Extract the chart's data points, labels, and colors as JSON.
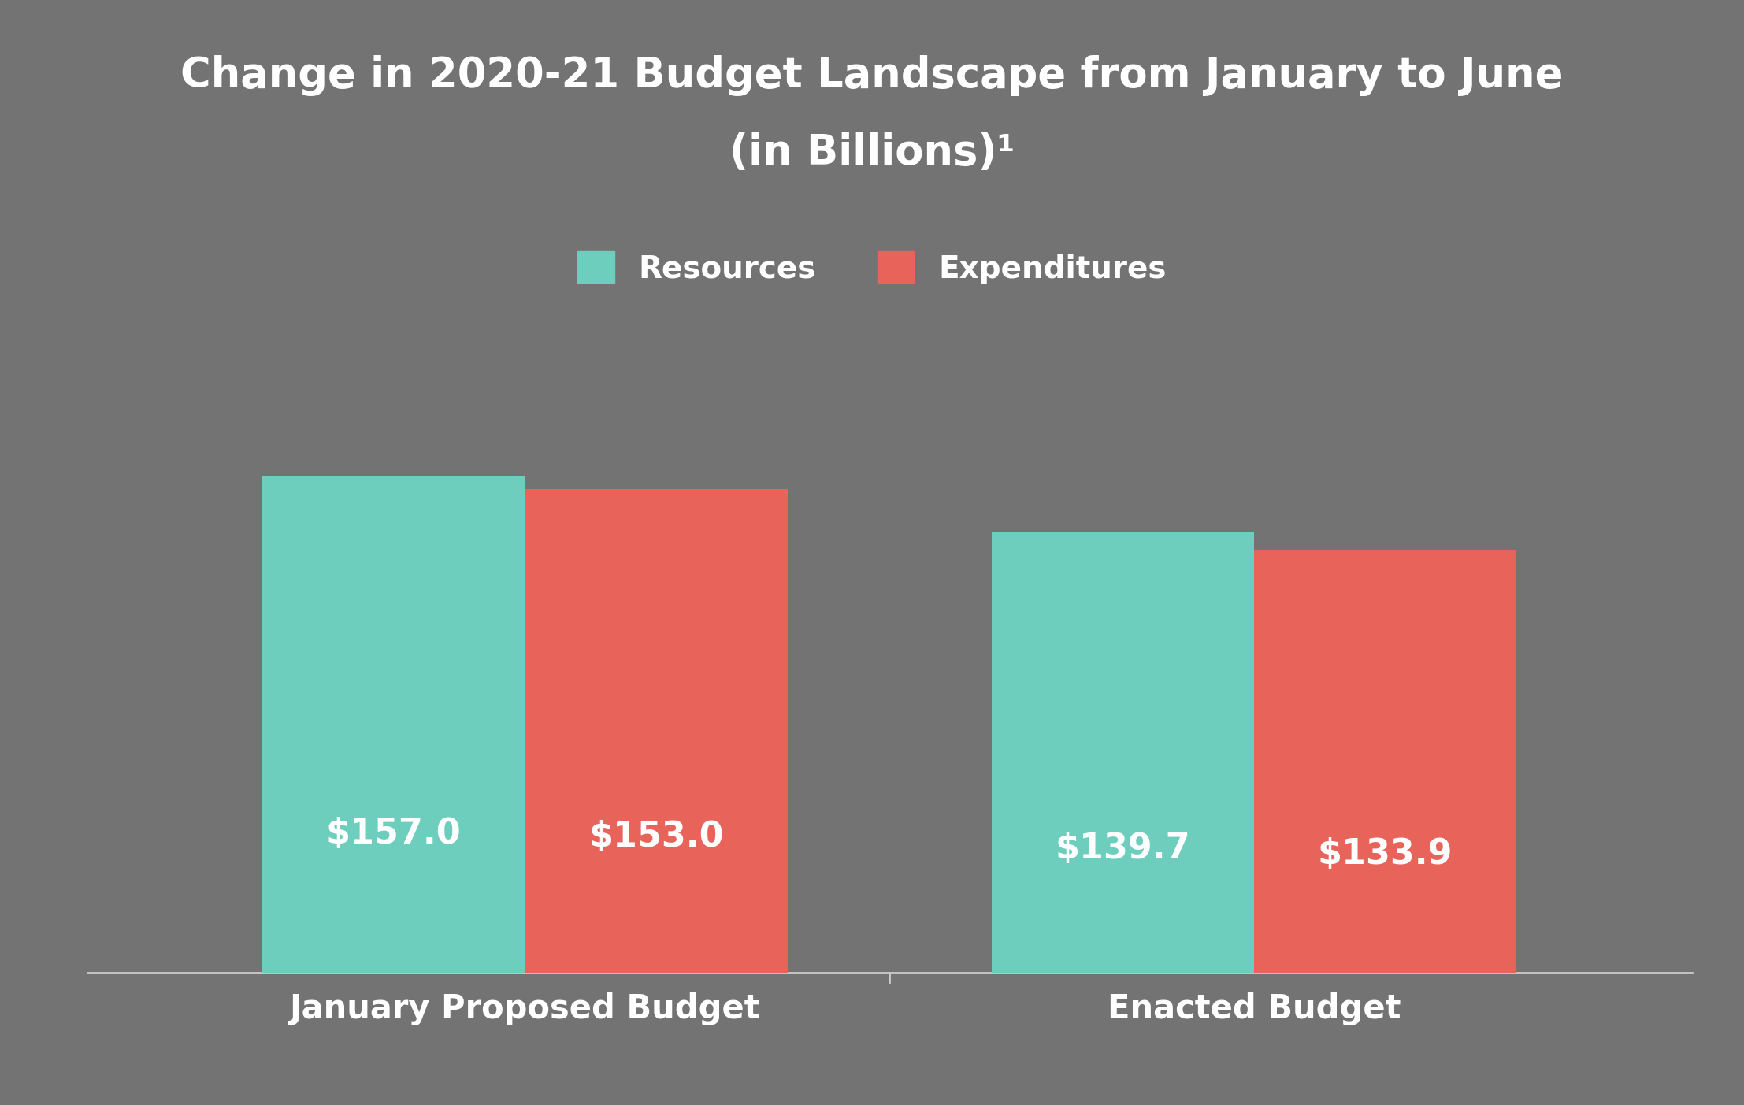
{
  "title_line1": "Change in 2020-21 Budget Landscape from January to June",
  "title_line2": "(in Billions)¹",
  "background_color": "#737373",
  "bar_color_resources": "#6ecebe",
  "bar_color_expenditures": "#e8635a",
  "categories": [
    "January Proposed Budget",
    "Enacted Budget"
  ],
  "resources": [
    157.0,
    139.7
  ],
  "expenditures": [
    153.0,
    133.9
  ],
  "label_resources": "Resources",
  "label_expenditures": "Expenditures",
  "text_color": "#ffffff",
  "title_fontsize": 38,
  "bar_label_fontsize": 32,
  "tick_fontsize": 30,
  "legend_fontsize": 28,
  "ylim": [
    0,
    210
  ],
  "bar_width": 0.18,
  "x_positions": [
    0.25,
    0.75
  ]
}
